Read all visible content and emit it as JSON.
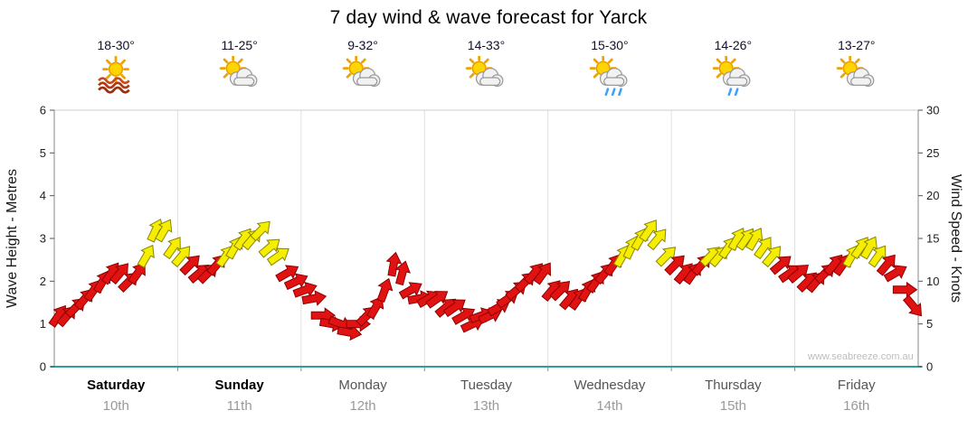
{
  "title": "7 day wind & wave forecast for Yarck",
  "watermark": "www.seabreeze.com.au",
  "axes": {
    "left_label": "Wave Height - Metres",
    "right_label": "Wind Speed - Knots",
    "left_ticks": [
      0,
      1,
      2,
      3,
      4,
      5,
      6
    ],
    "right_ticks": [
      0,
      5,
      10,
      15,
      20,
      25,
      30
    ],
    "left_max": 6,
    "right_max": 30
  },
  "chart_data": {
    "type": "scatter",
    "subtype": "wind-direction-arrows",
    "title": "7 day wind & wave forecast for Yarck",
    "ylabel_left": "Wave Height - Metres",
    "ylabel_right": "Wind Speed - Knots",
    "ylim_left": [
      0,
      6
    ],
    "ylim_right": [
      0,
      30
    ],
    "legend": "none",
    "grid": "day-separators-only",
    "color_rule": {
      "yellow_min_knots": 13,
      "red_fill": "#e11212",
      "red_stroke": "#8f0000",
      "yellow_fill": "#f5ee00",
      "yellow_stroke": "#8a8400",
      "baseline": "#2b9e9e"
    },
    "days": [
      {
        "name": "Saturday",
        "date": "10th",
        "temp": "18-30°",
        "icon": "sunny-hot",
        "weekend": true,
        "knots": [
          6,
          6,
          7,
          8,
          9,
          10,
          11,
          11,
          10,
          11,
          13,
          16,
          16,
          14
        ],
        "dirs": [
          35,
          40,
          45,
          40,
          35,
          30,
          35,
          40,
          45,
          35,
          30,
          25,
          30,
          35
        ]
      },
      {
        "name": "Sunday",
        "date": "11th",
        "temp": "11-25°",
        "icon": "partly-cloudy",
        "weekend": true,
        "knots": [
          13,
          12,
          11,
          11,
          12,
          13,
          14,
          15,
          15,
          16,
          14,
          13,
          11,
          10
        ],
        "dirs": [
          40,
          45,
          50,
          45,
          40,
          35,
          30,
          35,
          40,
          45,
          50,
          55,
          60,
          65
        ]
      },
      {
        "name": "Monday",
        "date": "12th",
        "temp": "9-32°",
        "icon": "partly-cloudy",
        "weekend": false,
        "knots": [
          9,
          8,
          6,
          5,
          5,
          4,
          5,
          6,
          7,
          9,
          12,
          11,
          9,
          8
        ],
        "dirs": [
          70,
          80,
          90,
          100,
          110,
          100,
          90,
          45,
          30,
          20,
          10,
          15,
          60,
          80
        ]
      },
      {
        "name": "Tuesday",
        "date": "13th",
        "temp": "14-33°",
        "icon": "partly-cloudy",
        "weekend": false,
        "knots": [
          8,
          8,
          7,
          7,
          6,
          5,
          6,
          6,
          7,
          8,
          9,
          10,
          11,
          11
        ],
        "dirs": [
          60,
          55,
          50,
          55,
          60,
          65,
          70,
          65,
          60,
          55,
          50,
          45,
          40,
          35
        ]
      },
      {
        "name": "Wednesday",
        "date": "14th",
        "temp": "15-30°",
        "icon": "showers",
        "weekend": false,
        "knots": [
          9,
          9,
          8,
          8,
          9,
          10,
          11,
          12,
          13,
          14,
          15,
          16,
          15,
          13
        ],
        "dirs": [
          40,
          45,
          40,
          35,
          30,
          35,
          40,
          35,
          30,
          25,
          30,
          35,
          40,
          45
        ]
      },
      {
        "name": "Thursday",
        "date": "15th",
        "temp": "14-26°",
        "icon": "light-showers",
        "weekend": false,
        "knots": [
          12,
          11,
          11,
          12,
          13,
          13,
          14,
          15,
          15,
          15,
          14,
          13,
          12,
          11
        ],
        "dirs": [
          45,
          40,
          35,
          40,
          45,
          40,
          35,
          30,
          35,
          30,
          35,
          40,
          50,
          55
        ]
      },
      {
        "name": "Friday",
        "date": "16th",
        "temp": "13-27°",
        "icon": "partly-cloudy",
        "weekend": false,
        "knots": [
          11,
          10,
          10,
          11,
          12,
          12,
          13,
          14,
          14,
          13,
          12,
          11,
          9,
          7
        ],
        "dirs": [
          50,
          45,
          40,
          45,
          40,
          35,
          30,
          35,
          30,
          35,
          40,
          60,
          90,
          140
        ]
      }
    ]
  }
}
